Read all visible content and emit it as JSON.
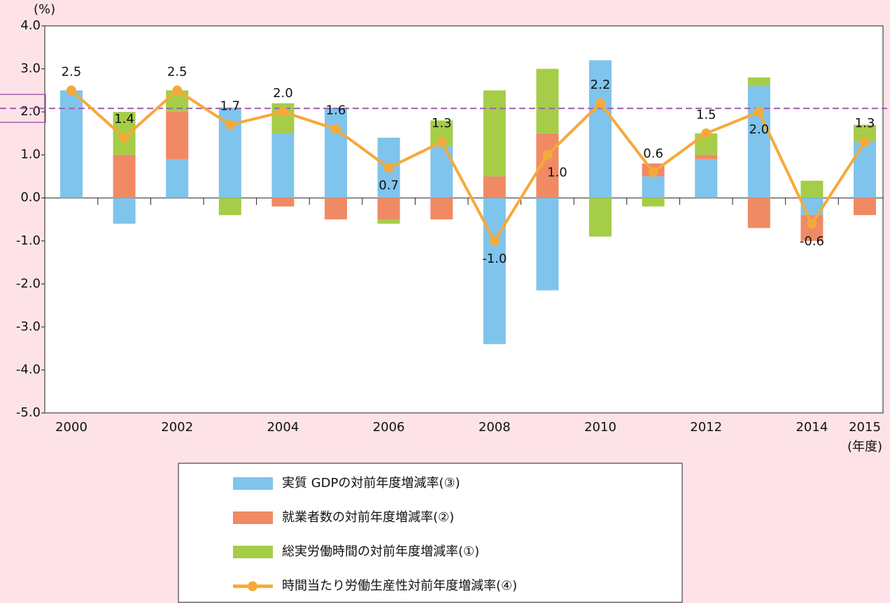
{
  "chart_data": {
    "type": "bar",
    "y_unit": "(%)",
    "x_unit": "(年度)",
    "categories": [
      "2000",
      null,
      "2002",
      null,
      "2004",
      null,
      "2006",
      null,
      "2008",
      null,
      "2010",
      null,
      "2012",
      null,
      "2014",
      "2015"
    ],
    "series": [
      {
        "name": "実質 GDPの対前年度増減率(③)",
        "color": "#7fc4ec",
        "values": [
          2.5,
          -0.6,
          0.9,
          2.1,
          1.5,
          2.1,
          1.4,
          1.2,
          -3.4,
          -2.15,
          3.2,
          0.5,
          0.9,
          2.6,
          -0.4,
          1.3
        ]
      },
      {
        "name": "就業者数の対前年度増減率(②)",
        "color": "#f08a64",
        "values": [
          0.0,
          1.0,
          1.1,
          0.0,
          -0.2,
          -0.5,
          -0.5,
          -0.5,
          0.5,
          1.5,
          0.0,
          0.3,
          0.1,
          -0.7,
          -0.6,
          -0.4
        ]
      },
      {
        "name": "総実労働時間の対前年度増減率(①)",
        "color": "#a5cd48",
        "values": [
          0.0,
          1.0,
          0.5,
          -0.4,
          0.7,
          0.0,
          -0.1,
          0.6,
          2.0,
          1.5,
          -0.9,
          -0.2,
          0.5,
          0.2,
          0.4,
          0.4
        ]
      },
      {
        "name": "時間当たり労働生産性対前年度増減率(④)",
        "color": "#f5a93a",
        "type": "line",
        "values": [
          2.5,
          1.4,
          2.5,
          1.7,
          2.0,
          1.6,
          0.7,
          1.3,
          -1.0,
          1.0,
          2.2,
          0.6,
          1.5,
          2.0,
          -0.6,
          1.3
        ],
        "value_labels": [
          "2.5",
          "1.4",
          "2.5",
          "1.7",
          "2.0",
          "1.6",
          "0.7",
          "1.3",
          "-1.0",
          "1.0",
          "2.2",
          "0.6",
          "1.5",
          "2.0",
          "-0.6",
          "1.3"
        ]
      }
    ],
    "ylim": [
      -5,
      4
    ],
    "yticks": [
      {
        "value": -5,
        "label": "-5.0"
      },
      {
        "value": -4,
        "label": "-4.0"
      },
      {
        "value": -3,
        "label": "-3.0"
      },
      {
        "value": -2,
        "label": "-2.0"
      },
      {
        "value": -1,
        "label": "-1.0"
      },
      {
        "value": 0,
        "label": "0.0"
      },
      {
        "value": 1,
        "label": "1.0"
      },
      {
        "value": 2,
        "label": "2.0"
      },
      {
        "value": 3,
        "label": "3.0"
      },
      {
        "value": 4,
        "label": "4.0"
      }
    ],
    "reference_value": 2.08,
    "grid": false
  }
}
